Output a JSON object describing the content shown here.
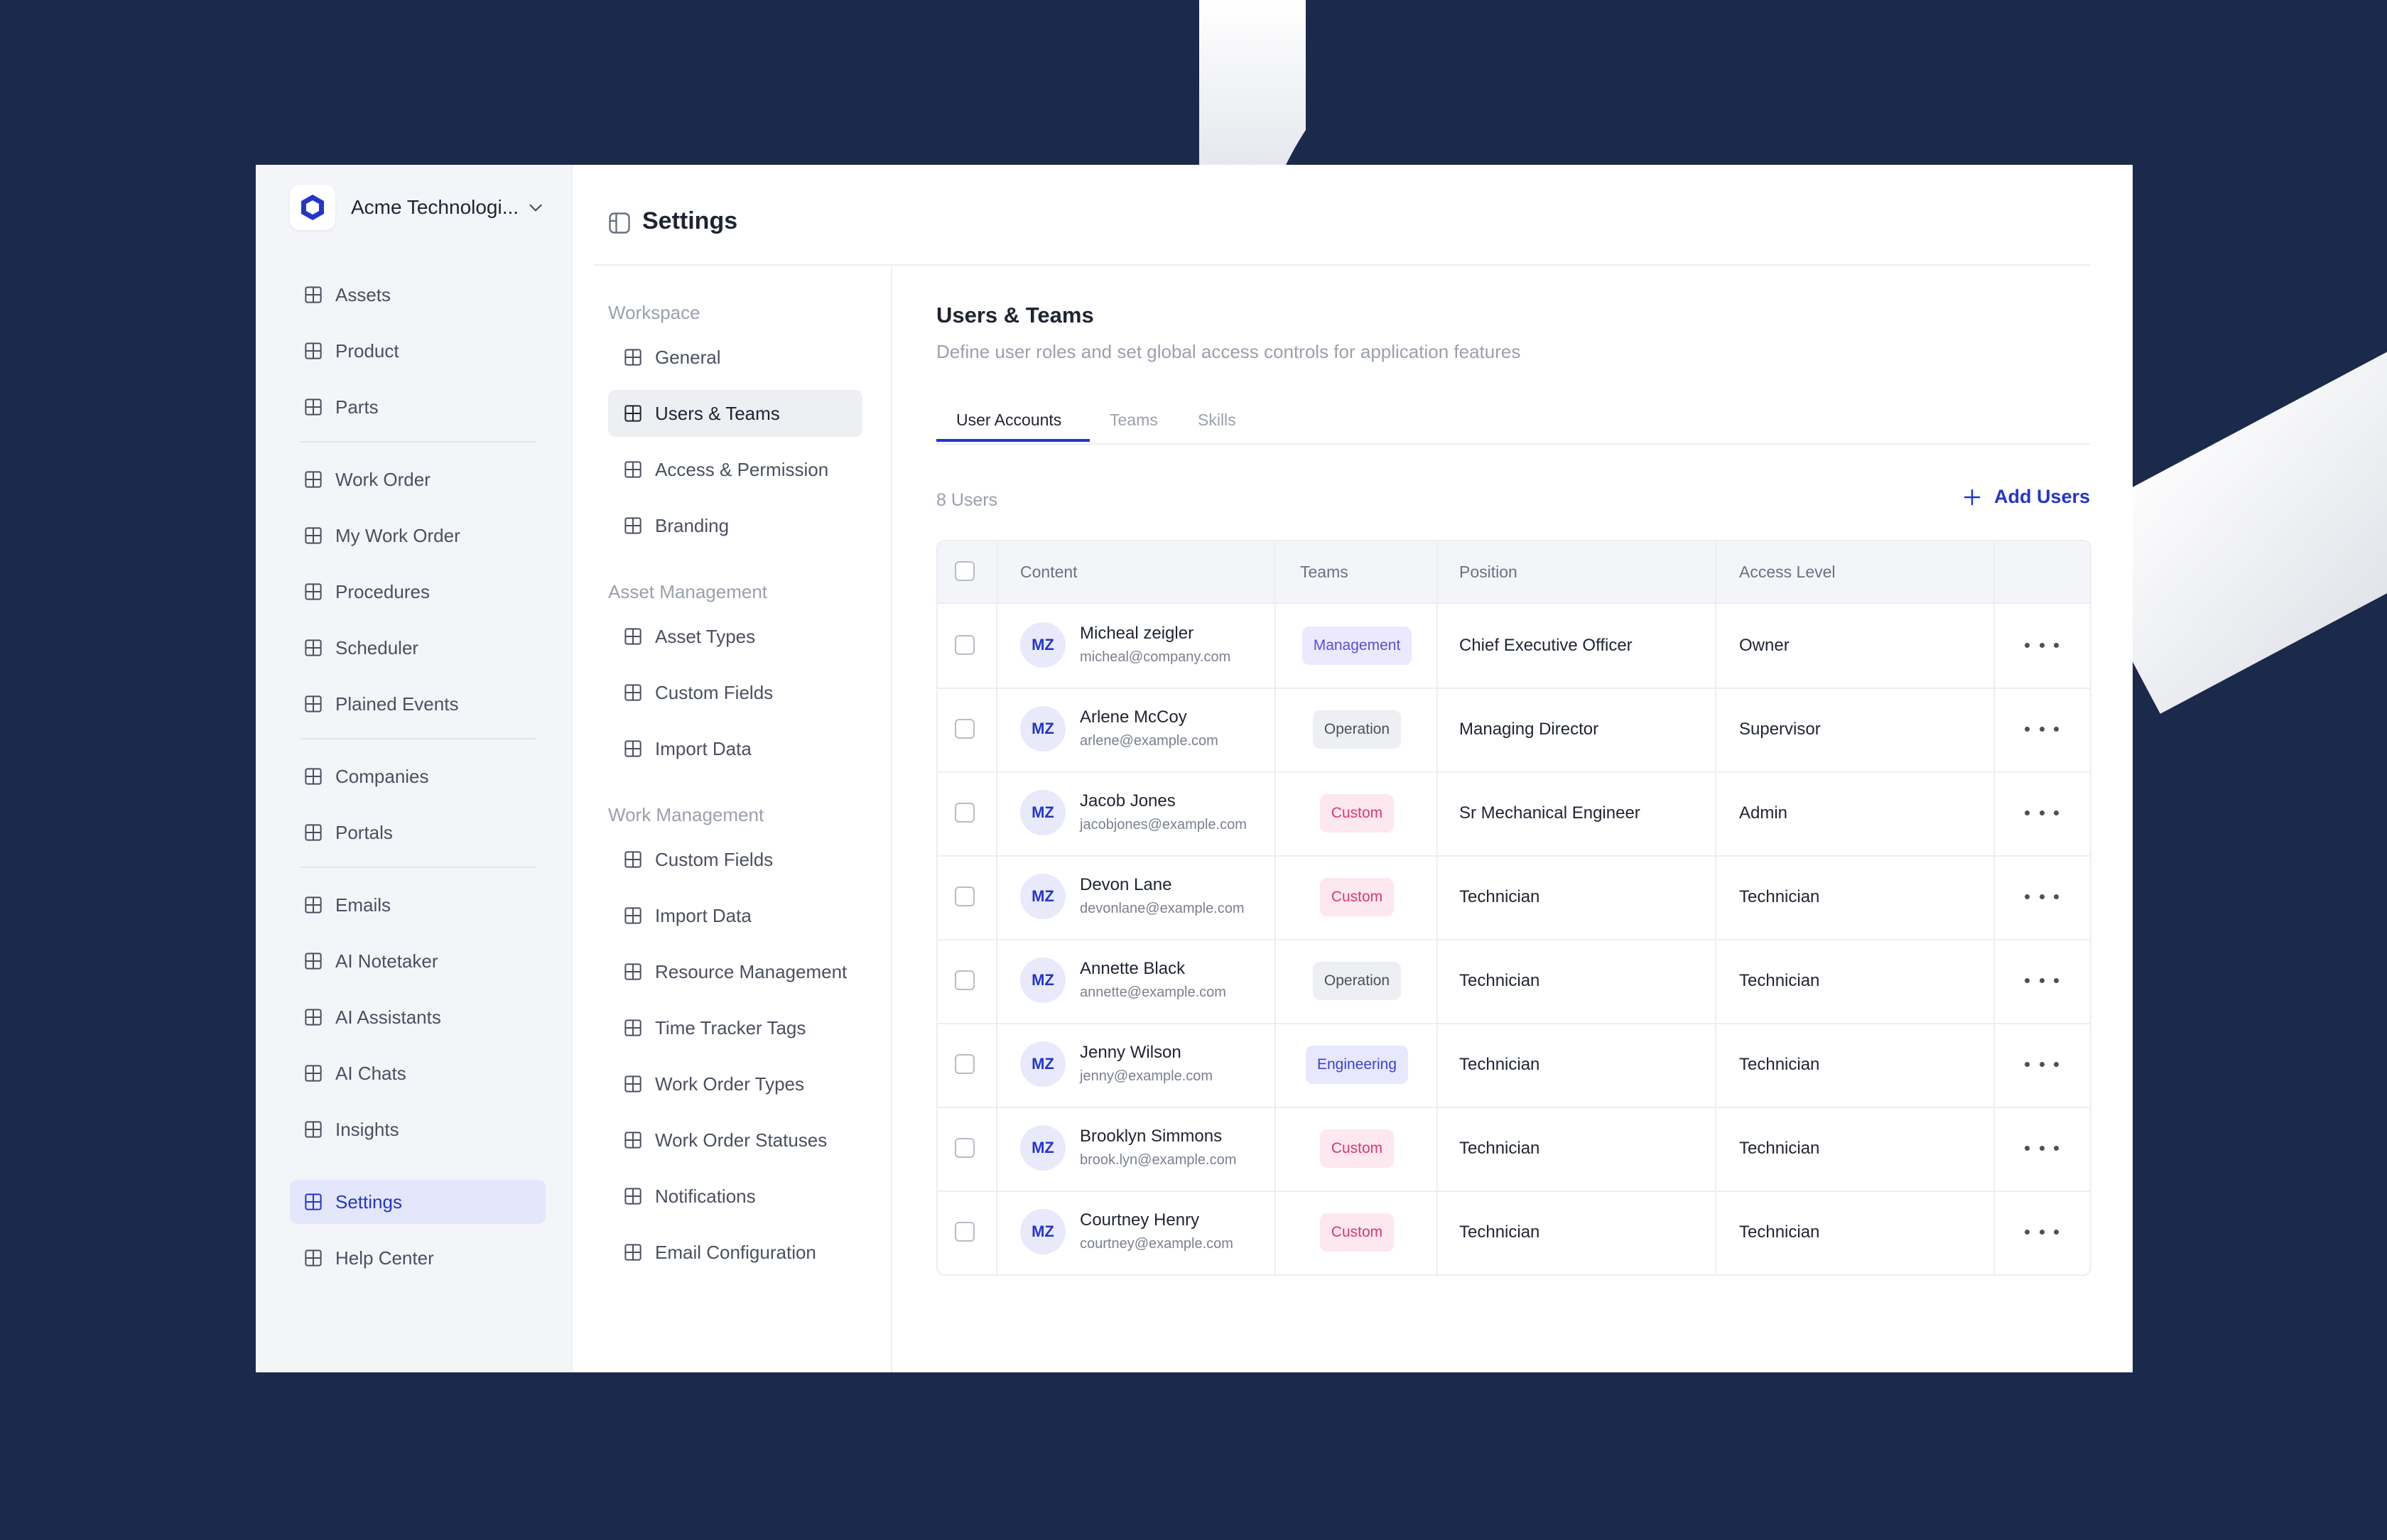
{
  "org": {
    "name": "Acme Technologi..."
  },
  "sidebar": {
    "groups": [
      [
        {
          "label": "Assets"
        },
        {
          "label": "Product"
        },
        {
          "label": "Parts"
        }
      ],
      [
        {
          "label": "Work Order"
        },
        {
          "label": "My Work Order"
        },
        {
          "label": "Procedures"
        },
        {
          "label": "Scheduler"
        },
        {
          "label": "Plained Events"
        }
      ],
      [
        {
          "label": "Companies"
        },
        {
          "label": "Portals"
        }
      ],
      [
        {
          "label": "Emails"
        },
        {
          "label": "AI Notetaker"
        },
        {
          "label": "AI Assistants"
        },
        {
          "label": "AI Chats"
        },
        {
          "label": "Insights"
        }
      ],
      [
        {
          "label": "Settings",
          "active": true
        },
        {
          "label": "Help Center"
        }
      ]
    ]
  },
  "header": {
    "title": "Settings"
  },
  "submenu": {
    "sections": [
      {
        "title": "Workspace",
        "items": [
          {
            "label": "General"
          },
          {
            "label": "Users & Teams",
            "active": true
          },
          {
            "label": "Access & Permission"
          },
          {
            "label": "Branding"
          }
        ]
      },
      {
        "title": "Asset Management",
        "items": [
          {
            "label": "Asset Types"
          },
          {
            "label": "Custom Fields"
          },
          {
            "label": "Import Data"
          }
        ]
      },
      {
        "title": "Work Management",
        "items": [
          {
            "label": "Custom Fields"
          },
          {
            "label": "Import Data"
          },
          {
            "label": "Resource Management"
          },
          {
            "label": "Time Tracker Tags"
          },
          {
            "label": "Work Order Types"
          },
          {
            "label": "Work Order Statuses"
          },
          {
            "label": "Notifications"
          },
          {
            "label": "Email Configuration"
          }
        ]
      }
    ]
  },
  "content": {
    "title": "Users & Teams",
    "subtitle": "Define user roles and set global  access controls for application features",
    "tabs": [
      "User Accounts",
      "Teams",
      "Skills"
    ],
    "count": "8 Users",
    "add_label": "Add Users",
    "columns": [
      "Content",
      "Teams",
      "Position",
      "Access Level"
    ],
    "users": [
      {
        "initials": "MZ",
        "name": "Micheal zeigler",
        "email": "micheal@company.com",
        "team": "Management",
        "team_type": "management",
        "position": "Chief Executive Officer",
        "access": "Owner"
      },
      {
        "initials": "MZ",
        "name": "Arlene McCoy",
        "email": "arlene@example.com",
        "team": "Operation",
        "team_type": "operation",
        "position": "Managing Director",
        "access": "Supervisor"
      },
      {
        "initials": "MZ",
        "name": "Jacob Jones",
        "email": "jacobjones@example.com",
        "team": "Custom",
        "team_type": "custom",
        "position": "Sr Mechanical Engineer",
        "access": "Admin"
      },
      {
        "initials": "MZ",
        "name": "Devon Lane",
        "email": "devonlane@example.com",
        "team": "Custom",
        "team_type": "custom",
        "position": "Technician",
        "access": "Technician"
      },
      {
        "initials": "MZ",
        "name": "Annette Black",
        "email": "annette@example.com",
        "team": "Operation",
        "team_type": "operation",
        "position": "Technician",
        "access": "Technician"
      },
      {
        "initials": "MZ",
        "name": "Jenny Wilson",
        "email": "jenny@example.com",
        "team": "Engineering",
        "team_type": "engineering",
        "position": "Technician",
        "access": "Technician"
      },
      {
        "initials": "MZ",
        "name": "Brooklyn Simmons",
        "email": "brook.lyn@example.com",
        "team": "Custom",
        "team_type": "custom",
        "position": "Technician",
        "access": "Technician"
      },
      {
        "initials": "MZ",
        "name": "Courtney Henry",
        "email": "courtney@example.com",
        "team": "Custom",
        "team_type": "custom",
        "position": "Technician",
        "access": "Technician"
      }
    ]
  },
  "colors": {
    "accent": "#2436c9",
    "background": "#1b2a4b"
  },
  "icons": {
    "nav": "grid-icon",
    "header": "layout-icon",
    "add": "plus-icon",
    "more": "more-horizontal-icon"
  }
}
